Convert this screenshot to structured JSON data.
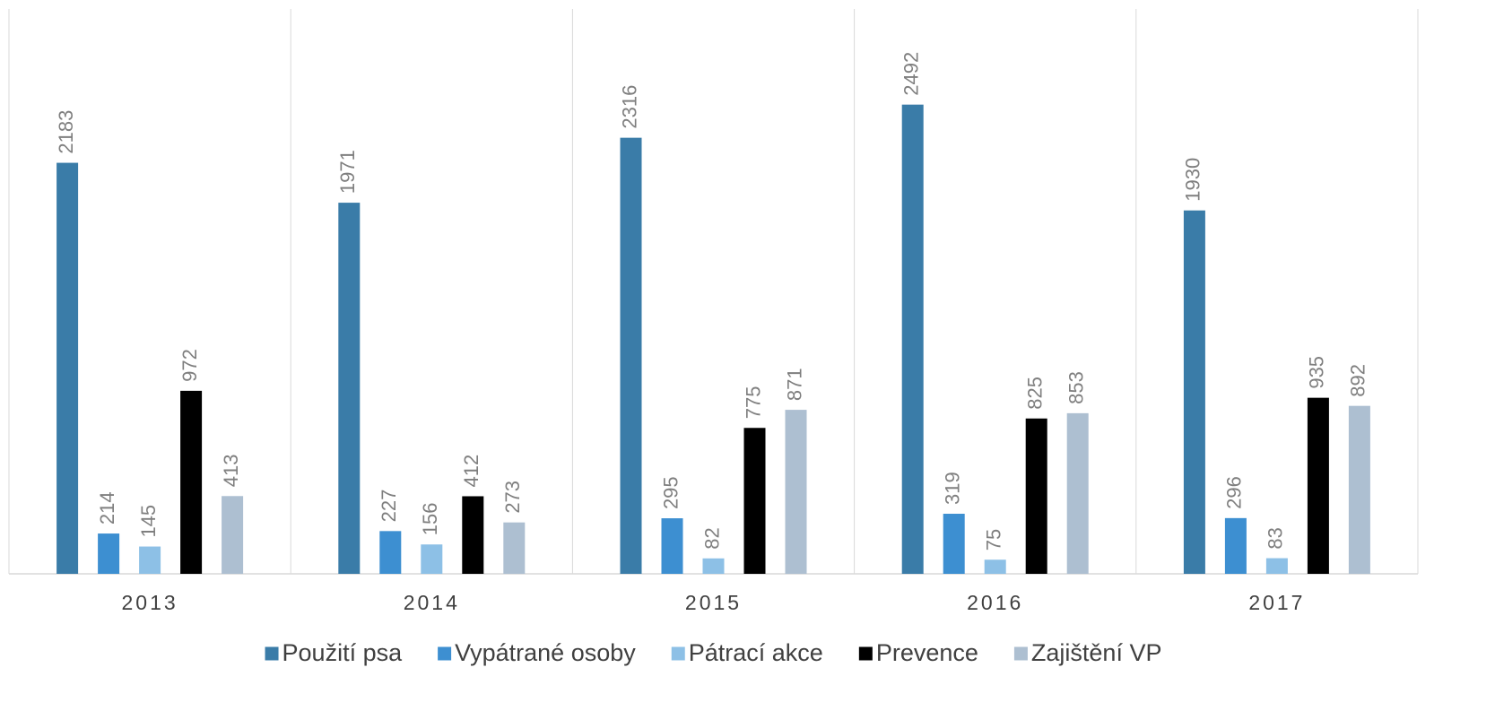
{
  "chart_data": {
    "type": "bar",
    "categories": [
      "2013",
      "2014",
      "2015",
      "2016",
      "2017"
    ],
    "series": [
      {
        "name": "Použití psa",
        "color": "#3a7ca8",
        "values": [
          2183,
          1971,
          2316,
          2492,
          1930
        ]
      },
      {
        "name": "Vypátrané osoby",
        "color": "#3d8fd1",
        "values": [
          214,
          227,
          295,
          319,
          296
        ]
      },
      {
        "name": "Pátrací akce",
        "color": "#8dc0e6",
        "values": [
          145,
          156,
          82,
          75,
          83
        ]
      },
      {
        "name": "Prevence",
        "color": "#000000",
        "values": [
          972,
          412,
          775,
          825,
          935
        ]
      },
      {
        "name": "Zajištění VP",
        "color": "#adbfd1",
        "values": [
          413,
          273,
          871,
          853,
          892
        ]
      }
    ],
    "ylim": [
      0,
      3000
    ],
    "legend": "bottom"
  }
}
